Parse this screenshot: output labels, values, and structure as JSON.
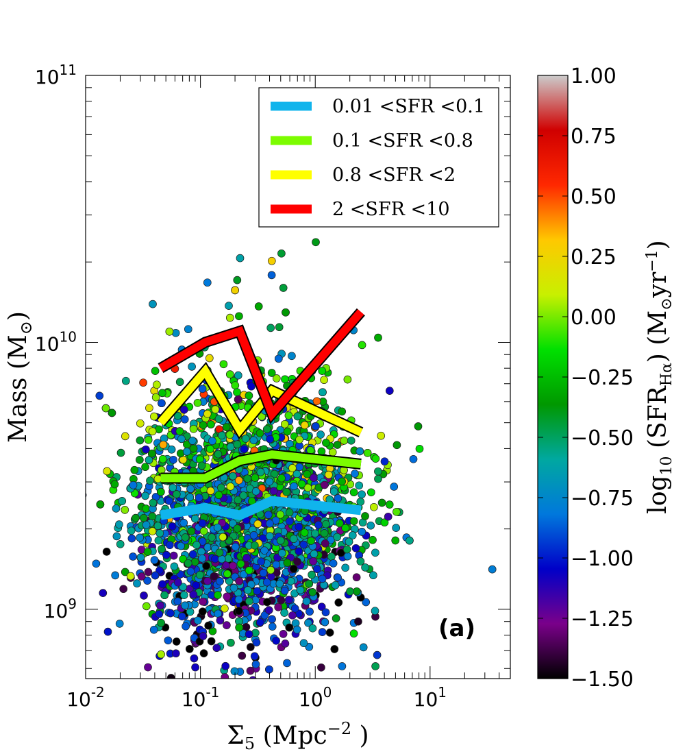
{
  "chart_data": {
    "type": "scatter",
    "panel_label": "(a)",
    "xlabel": {
      "main": "Σ",
      "sub": "5",
      "unit_open": " (Mpc",
      "sup": "−2",
      "unit_close": " )"
    },
    "ylabel": {
      "main": "Mass (M",
      "sub": "⊙",
      "close": ")"
    },
    "xscale": "log",
    "yscale": "log",
    "xlim": [
      0.01,
      50
    ],
    "ylim": [
      550000000,
      100000000000
    ],
    "x_ticks": [
      {
        "value": 0.01,
        "base": "10",
        "exp": "-2"
      },
      {
        "value": 0.1,
        "base": "10",
        "exp": "-1"
      },
      {
        "value": 1,
        "base": "10",
        "exp": "0"
      },
      {
        "value": 10,
        "base": "10",
        "exp": "1"
      }
    ],
    "y_ticks": [
      {
        "value": 1000000000,
        "base": "10",
        "exp": "9"
      },
      {
        "value": 10000000000,
        "base": "10",
        "exp": "10"
      },
      {
        "value": 100000000000,
        "base": "10",
        "exp": "11"
      }
    ],
    "series": [
      {
        "name": "0.01 <SFR <0.1",
        "color": "#10b4ec",
        "x": [
          0.045,
          0.11,
          0.22,
          0.42,
          2.5
        ],
        "y": [
          2250000000,
          2400000000,
          2250000000,
          2550000000,
          2350000000
        ]
      },
      {
        "name": "0.1 <SFR <0.8",
        "color": "#7cfc00",
        "x": [
          0.045,
          0.11,
          0.22,
          0.42,
          2.5
        ],
        "y": [
          3100000000,
          3100000000,
          3600000000,
          3800000000,
          3500000000
        ]
      },
      {
        "name": "0.8 <SFR <2",
        "color": "#ffff00",
        "x": [
          0.045,
          0.11,
          0.22,
          0.42,
          2.5
        ],
        "y": [
          5000000000,
          7800000000,
          4700000000,
          6600000000,
          4600000000
        ]
      },
      {
        "name": "2 <SFR <10",
        "color": "#ff0000",
        "x": [
          0.045,
          0.11,
          0.22,
          0.42,
          2.5
        ],
        "y": [
          8000000000,
          10000000000,
          11000000000,
          5400000000,
          13000000000
        ]
      }
    ],
    "legend": {
      "placement": "top-right"
    },
    "colorbar": {
      "label": {
        "pre": "log",
        "pre_sub": "10",
        "mid": " (SFR",
        "mid_sub": "Hα",
        "post": ")    (M",
        "post_sub": "⊙",
        "post2": "yr",
        "post2_sup": "−1",
        "end": ")"
      },
      "range": [
        -1.5,
        1.0
      ],
      "ticks": [
        "1.00",
        "0.75",
        "0.50",
        "0.25",
        "0.00",
        "−0.25",
        "−0.50",
        "−0.75",
        "−1.00",
        "−1.25",
        "−1.50"
      ],
      "tick_values": [
        1.0,
        0.75,
        0.5,
        0.25,
        0.0,
        -0.25,
        -0.5,
        -0.75,
        -1.0,
        -1.25,
        -1.5
      ],
      "colormap": "nipy_spectral",
      "stops": [
        "#000000",
        "#7a008a",
        "#0000c8",
        "#0078dc",
        "#00a8a0",
        "#009800",
        "#00e000",
        "#c8f000",
        "#ffc800",
        "#ff2800",
        "#d00000",
        "#cccccc"
      ]
    },
    "points_description": {
      "count": 2500,
      "log_x_center": -0.6,
      "log_x_spread": 0.5,
      "log_y_center": 9.35,
      "log_y_spread": 0.22,
      "sfr_range": [
        -1.5,
        1.0
      ]
    }
  }
}
